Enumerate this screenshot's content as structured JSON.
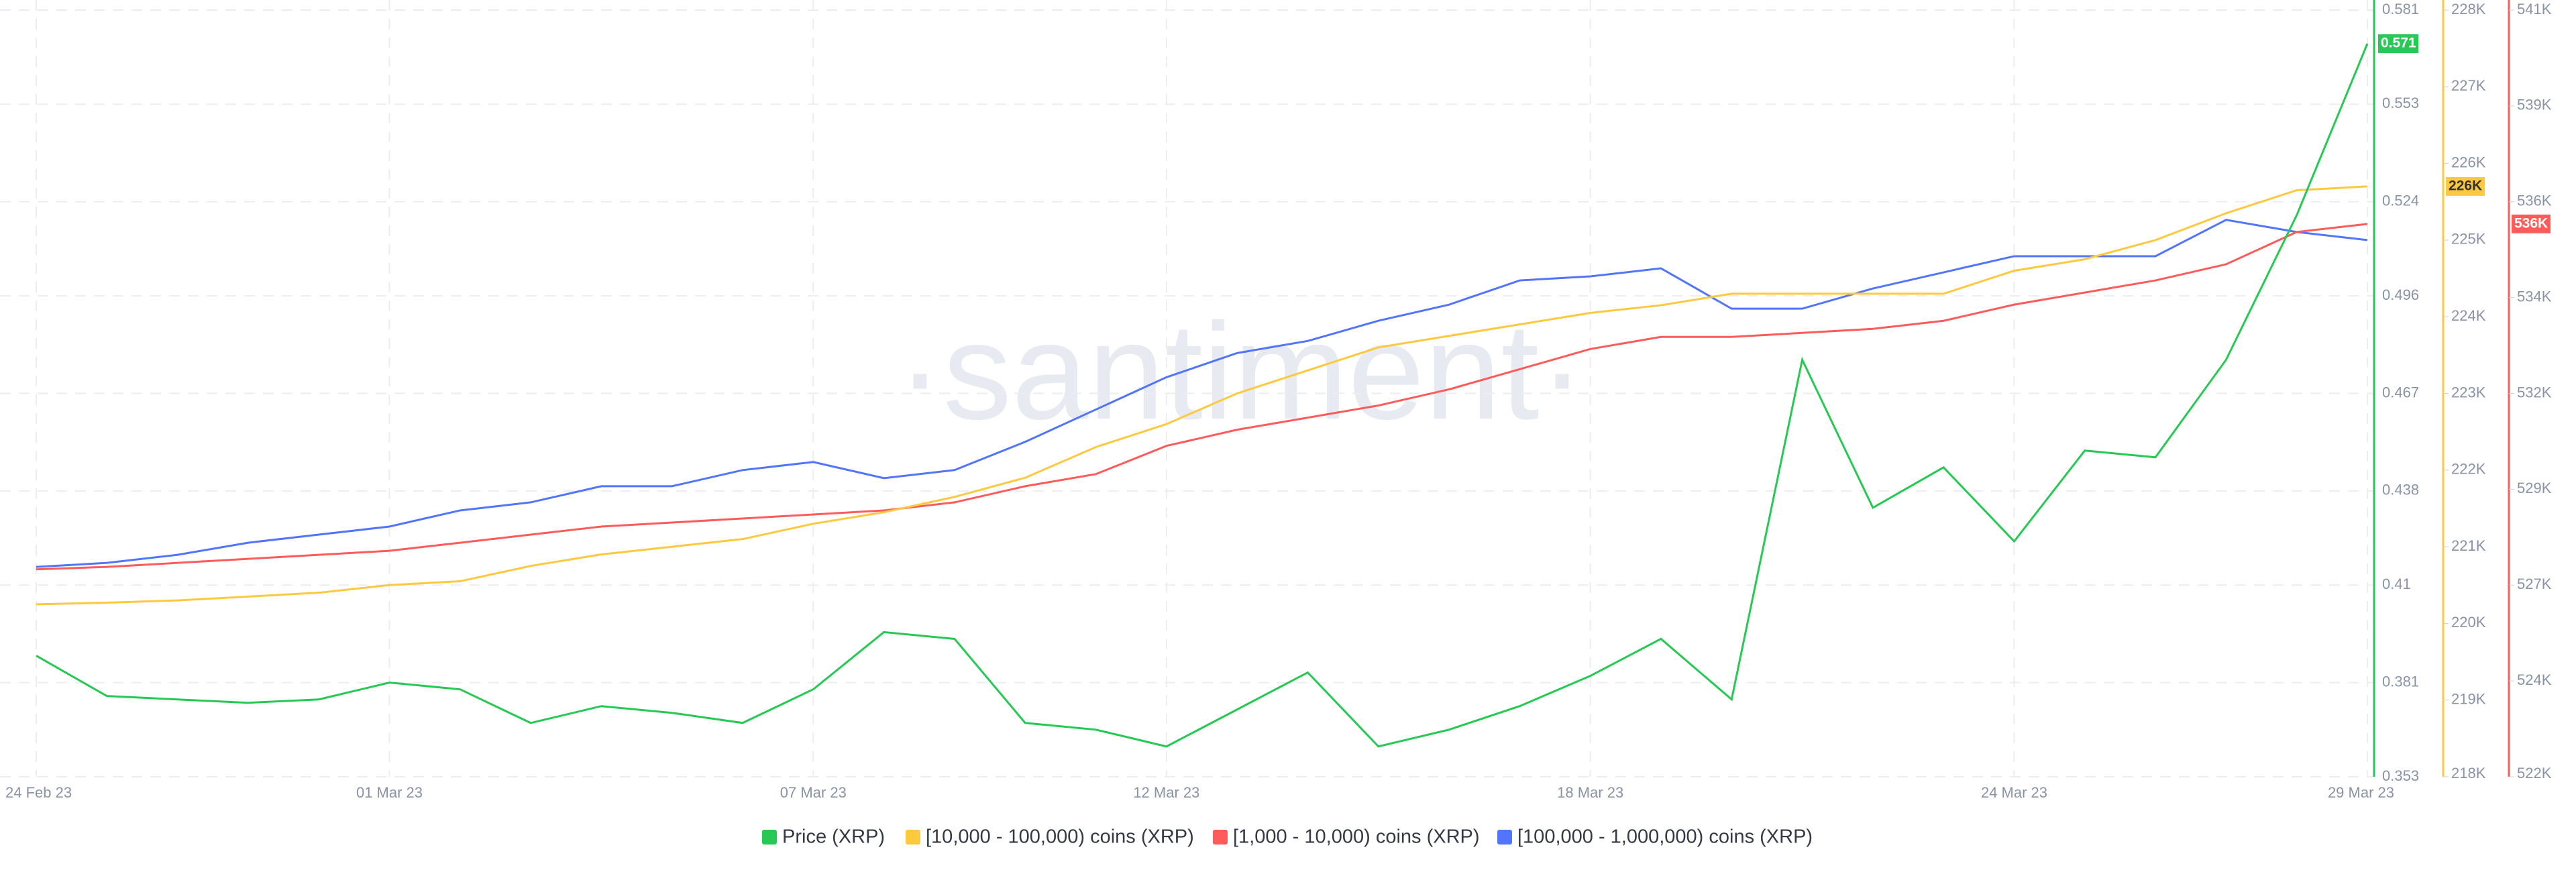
{
  "chart_data": {
    "type": "line",
    "watermark": "·santiment·",
    "x": [
      "24 Feb 23",
      "25 Feb 23",
      "26 Feb 23",
      "27 Feb 23",
      "28 Feb 23",
      "01 Mar 23",
      "02 Mar 23",
      "03 Mar 23",
      "04 Mar 23",
      "05 Mar 23",
      "06 Mar 23",
      "07 Mar 23",
      "08 Mar 23",
      "09 Mar 23",
      "10 Mar 23",
      "11 Mar 23",
      "12 Mar 23",
      "13 Mar 23",
      "14 Mar 23",
      "15 Mar 23",
      "16 Mar 23",
      "17 Mar 23",
      "18 Mar 23",
      "19 Mar 23",
      "20 Mar 23",
      "21 Mar 23",
      "22 Mar 23",
      "23 Mar 23",
      "24 Mar 23",
      "25 Mar 23",
      "26 Mar 23",
      "27 Mar 23",
      "28 Mar 23",
      "29 Mar 23"
    ],
    "xticks": [
      "24 Feb 23",
      "01 Mar 23",
      "07 Mar 23",
      "12 Mar 23",
      "18 Mar 23",
      "24 Mar 23",
      "29 Mar 23"
    ],
    "ylim": [
      0.353,
      0.581
    ],
    "yticks": [
      0.353,
      0.381,
      0.41,
      0.438,
      0.467,
      0.496,
      0.524,
      0.553,
      0.581
    ],
    "y2lim": [
      218000,
      228000
    ],
    "y2ticks": [
      {
        "value": 218000,
        "label": "218K"
      },
      {
        "value": 219000,
        "label": "219K"
      },
      {
        "value": 220000,
        "label": "220K"
      },
      {
        "value": 221000,
        "label": "221K"
      },
      {
        "value": 222000,
        "label": "222K"
      },
      {
        "value": 223000,
        "label": "223K"
      },
      {
        "value": 224000,
        "label": "224K"
      },
      {
        "value": 225000,
        "label": "225K"
      },
      {
        "value": 226000,
        "label": "226K"
      },
      {
        "value": 227000,
        "label": "227K"
      },
      {
        "value": 228000,
        "label": "228K"
      }
    ],
    "y3lim": [
      522000,
      541000
    ],
    "y3ticks": [
      {
        "value": 522000,
        "label": "522K"
      },
      {
        "value": 524375,
        "label": "524K"
      },
      {
        "value": 526750,
        "label": "527K"
      },
      {
        "value": 529125,
        "label": "529K"
      },
      {
        "value": 531500,
        "label": "532K"
      },
      {
        "value": 533875,
        "label": "534K"
      },
      {
        "value": 536250,
        "label": "536K"
      },
      {
        "value": 538625,
        "label": "539K"
      },
      {
        "value": 541000,
        "label": "541K"
      }
    ],
    "grid": true,
    "series": [
      {
        "name": "Price (XRP)",
        "color": "#26c953",
        "axis": "y",
        "values": [
          0.389,
          0.377,
          0.376,
          0.375,
          0.376,
          0.381,
          0.379,
          0.369,
          0.374,
          0.372,
          0.369,
          0.379,
          0.396,
          0.394,
          0.369,
          0.367,
          0.362,
          0.373,
          0.384,
          0.362,
          0.367,
          0.374,
          0.383,
          0.394,
          0.376,
          0.477,
          0.433,
          0.445,
          0.423,
          0.45,
          0.448,
          0.477,
          0.52,
          0.571
        ]
      },
      {
        "name": "[10,000 - 100,000) coins (XRP)",
        "color": "#ffc93f",
        "axis": "y2",
        "value_label": "226K",
        "values": [
          220250,
          220270,
          220300,
          220350,
          220400,
          220500,
          220550,
          220750,
          220900,
          221000,
          221100,
          221300,
          221450,
          221650,
          221900,
          222300,
          222600,
          223000,
          223300,
          223600,
          223750,
          223900,
          224050,
          224150,
          224300,
          224300,
          224300,
          224300,
          224600,
          224750,
          225000,
          225350,
          225650,
          225700
        ]
      },
      {
        "name": "[1,000 - 10,000) coins (XRP)",
        "color": "#ff5b5b",
        "axis": "y3",
        "value_label": "536K",
        "values": [
          527140,
          527200,
          527300,
          527400,
          527500,
          527600,
          527800,
          528000,
          528200,
          528300,
          528400,
          528500,
          528600,
          528800,
          529200,
          529500,
          530200,
          530600,
          530900,
          531200,
          531600,
          532100,
          532600,
          532900,
          532900,
          533000,
          533100,
          533300,
          533700,
          534000,
          534300,
          534700,
          535500,
          535700
        ]
      },
      {
        "name": "[100,000  - 1,000,000) coins (XRP)",
        "color": "#5275ff",
        "axis": "y3",
        "values": [
          527200,
          527300,
          527500,
          527800,
          528000,
          528200,
          528600,
          528800,
          529200,
          529200,
          529600,
          529800,
          529400,
          529600,
          530300,
          531100,
          531900,
          532500,
          532800,
          533300,
          533700,
          534300,
          534400,
          534600,
          533600,
          533600,
          534100,
          534500,
          534900,
          534900,
          534900,
          535800,
          535500,
          535300
        ]
      }
    ]
  }
}
